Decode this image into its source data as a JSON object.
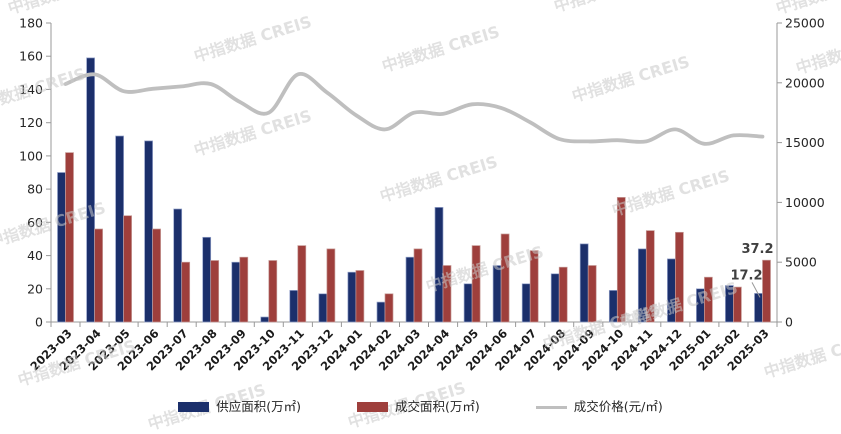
{
  "chart_data": {
    "type": "bar+line",
    "title": "",
    "categories": [
      "2023-03",
      "2023-04",
      "2023-05",
      "2023-06",
      "2023-07",
      "2023-08",
      "2023-09",
      "2023-10",
      "2023-11",
      "2023-12",
      "2024-01",
      "2024-02",
      "2024-03",
      "2024-04",
      "2024-05",
      "2024-06",
      "2024-07",
      "2024-08",
      "2024-09",
      "2024-10",
      "2024-11",
      "2024-12",
      "2025-01",
      "2025-02",
      "2025-03"
    ],
    "series": [
      {
        "name": "供应面积(万㎡)",
        "type": "bar",
        "axis": "left",
        "color": "#1b2f6b",
        "edge_color": "#93a1c9",
        "values": [
          90,
          159,
          112,
          109,
          68,
          51,
          36,
          3,
          19,
          17,
          30,
          12,
          39,
          69,
          23,
          34,
          23,
          29,
          47,
          19,
          44,
          38,
          20,
          22,
          17.2
        ]
      },
      {
        "name": "成交面积(万㎡)",
        "type": "bar",
        "axis": "left",
        "color": "#9e3f3c",
        "edge_color": "#c79b97",
        "values": [
          102,
          56,
          64,
          56,
          36,
          37,
          39,
          37,
          46,
          44,
          31,
          17,
          44,
          34,
          46,
          53,
          43,
          33,
          34,
          75,
          55,
          54,
          27,
          21,
          37.2
        ]
      },
      {
        "name": "成交价格(元/㎡)",
        "type": "line",
        "axis": "right",
        "color": "#bfbfbf",
        "values": [
          19900,
          20700,
          19300,
          19500,
          19700,
          19900,
          18400,
          17500,
          20700,
          19200,
          17300,
          16100,
          17500,
          17400,
          18200,
          17900,
          16700,
          15300,
          15100,
          15200,
          15100,
          16100,
          14900,
          15600,
          15500
        ]
      }
    ],
    "left_axis": {
      "min": 0,
      "max": 180,
      "step": 20,
      "ticks": [
        0,
        20,
        40,
        60,
        80,
        100,
        120,
        140,
        160,
        180
      ]
    },
    "right_axis": {
      "min": 0,
      "max": 25000,
      "step": 5000,
      "ticks": [
        0,
        5000,
        10000,
        15000,
        20000,
        25000
      ]
    },
    "annotations": [
      {
        "text": "37.2",
        "series": "成交面积(万㎡)",
        "category": "2025-03",
        "leader_line": false
      },
      {
        "text": "17.2",
        "series": "供应面积(万㎡)",
        "category": "2025-03",
        "leader_line": true
      }
    ],
    "grid": false,
    "legend_position": "bottom",
    "axis_color": "#999999",
    "tick_label_color": "#262626",
    "annotation_color": "#404040"
  },
  "watermark": {
    "text": "中指数据 CREIS",
    "color": "#c9c9c9"
  }
}
